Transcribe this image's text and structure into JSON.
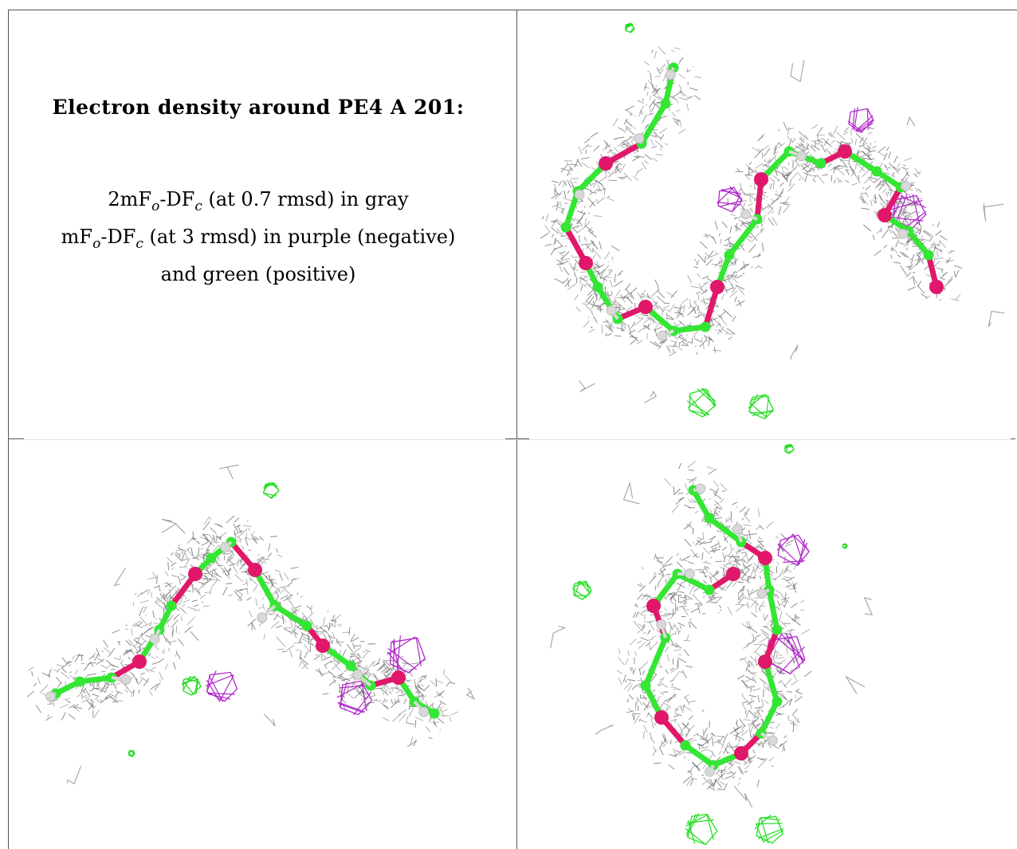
{
  "caption": {
    "title": "Electron density around PE4 A 201:",
    "line1": {
      "prefix": "2mF",
      "sub1": "o",
      "mid": "-DF",
      "sub2": "c",
      "suffix": " (at 0.7 rmsd) in gray"
    },
    "line2": {
      "prefix": "mF",
      "sub1": "o",
      "mid": "-DF",
      "sub2": "c",
      "suffix": " (at 3 rmsd) in purple (negative)"
    },
    "line3": "and green (positive)"
  },
  "colors": {
    "mesh_gray": "#9a9a9a",
    "mesh_dark": "#6f6f6f",
    "carbon": "#33e633",
    "oxygen": "#e0176a",
    "hydrogen": "#d8d8d8",
    "negative_density": "#b026c9",
    "positive_density": "#22dd22"
  },
  "panels": [
    {
      "view": "top-right"
    },
    {
      "view": "bottom-left"
    },
    {
      "view": "bottom-right"
    }
  ]
}
